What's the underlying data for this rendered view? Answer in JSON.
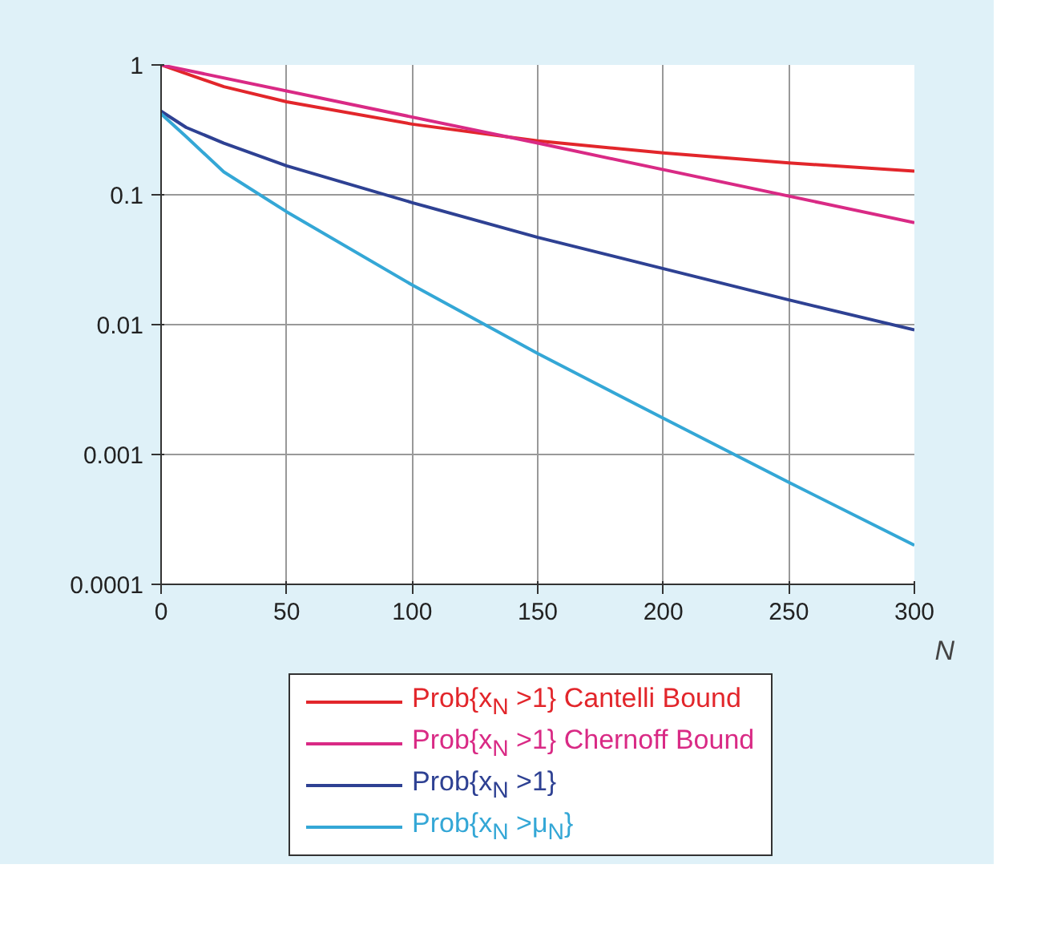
{
  "chart_data": {
    "type": "line",
    "xlabel": "N",
    "log": "y",
    "xlim": [
      0,
      300
    ],
    "ylim": [
      0.0001,
      1
    ],
    "xticks": [
      0,
      50,
      100,
      150,
      200,
      250,
      300
    ],
    "yticks": [
      0.0001,
      0.001,
      0.01,
      0.1,
      1
    ],
    "grid": true,
    "legend": "bottom",
    "marker": "none",
    "line_style": "solid",
    "series": [
      {
        "name": "Prob{x$_{N}$ >1} Cantelli Bound",
        "color": "#e2262b",
        "x": [
          0,
          25,
          50,
          100,
          150,
          200,
          250,
          300
        ],
        "values": [
          1,
          0.68,
          0.52,
          0.35,
          0.26,
          0.21,
          0.176,
          0.152
        ]
      },
      {
        "name": "Prob{x$_{N}$ >1} Chernoff Bound",
        "color": "#d92a85",
        "x": [
          0,
          150,
          300
        ],
        "values": [
          1,
          0.25,
          0.061
        ]
      },
      {
        "name": "Prob{x$_{N}$ >1}",
        "color": "#2e4193",
        "x": [
          0,
          10,
          25,
          50,
          100,
          150,
          200,
          250,
          300
        ],
        "values": [
          0.44,
          0.33,
          0.25,
          0.167,
          0.087,
          0.047,
          0.027,
          0.0155,
          0.0091
        ]
      },
      {
        "name": "Prob{x$_{N}$ >μ$_{N}$}",
        "color": "#34a7d6",
        "x": [
          0,
          10,
          25,
          50,
          100,
          150,
          200,
          250,
          300
        ],
        "values": [
          0.42,
          0.28,
          0.15,
          0.074,
          0.0202,
          0.006,
          0.0019,
          0.00061,
          0.0002
        ]
      }
    ]
  }
}
